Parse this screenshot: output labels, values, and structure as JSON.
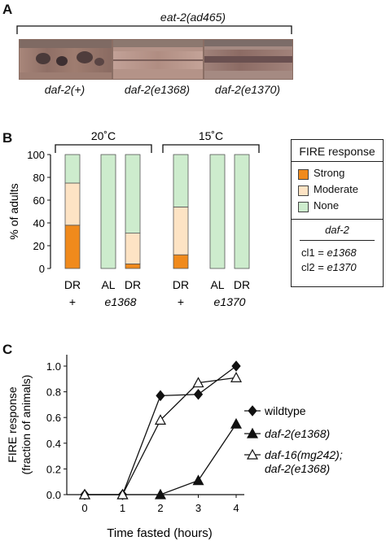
{
  "panelA": {
    "letter": "A",
    "bracket_label": "eat-2(ad465)",
    "images": [
      {
        "label": "daf-2(+)"
      },
      {
        "label": "daf-2(e1368)"
      },
      {
        "label": "daf-2(e1370)"
      }
    ]
  },
  "panelB": {
    "letter": "B",
    "temps": [
      "20˚C",
      "15˚C"
    ],
    "ylabel": "% of adults",
    "yticks": [
      "0",
      "20",
      "40",
      "60",
      "80",
      "100"
    ],
    "group_labels": [
      "DR",
      "AL",
      "DR",
      "DR",
      "AL",
      "DR"
    ],
    "genotype_labels": [
      "+",
      "e1368",
      "+",
      "e1370"
    ],
    "legend": {
      "title": "FIRE response",
      "items": [
        "Strong",
        "Moderate",
        "None"
      ],
      "sub_title": "daf-2",
      "cl1_prefix": "cl1 = ",
      "cl1_value": "e1368",
      "cl2_prefix": "cl2 = ",
      "cl2_value": "e1370"
    },
    "colors": {
      "strong": "#f08a1c",
      "moderate": "#fde3c4",
      "none": "#cdeccd"
    }
  },
  "panelC": {
    "letter": "C",
    "ylabel_line1": "FIRE response",
    "ylabel_line2": "(fraction of animals)",
    "xlabel": "Time fasted (hours)",
    "xticks": [
      "0",
      "1",
      "2",
      "3",
      "4"
    ],
    "yticks": [
      "0.0",
      "0.2",
      "0.4",
      "0.6",
      "0.8",
      "1.0"
    ],
    "legend": [
      "wildtype",
      "daf-2(e1368)",
      "daf-16(mg242);",
      "daf-2(e1368)"
    ]
  },
  "chart_data": [
    {
      "type": "bar",
      "stacked": true,
      "ylabel": "% of adults",
      "ylim": [
        0,
        100
      ],
      "categories": [
        "DR +",
        "AL e1368",
        "DR e1368",
        "DR +",
        "AL e1370",
        "DR e1370"
      ],
      "groups": [
        "20˚C",
        "20˚C",
        "20˚C",
        "15˚C",
        "15˚C",
        "15˚C"
      ],
      "series": [
        {
          "name": "Strong",
          "values": [
            38,
            0,
            4,
            12,
            0,
            0
          ]
        },
        {
          "name": "Moderate",
          "values": [
            37,
            0,
            27,
            42,
            0,
            0
          ]
        },
        {
          "name": "None",
          "values": [
            25,
            100,
            69,
            46,
            100,
            100
          ]
        }
      ]
    },
    {
      "type": "line",
      "xlabel": "Time fasted (hours)",
      "ylabel": "FIRE response (fraction of animals)",
      "xlim": [
        0,
        4
      ],
      "ylim": [
        0,
        1.0
      ],
      "x": [
        0,
        1,
        2,
        3,
        4
      ],
      "series": [
        {
          "name": "wildtype",
          "marker": "diamond",
          "values": [
            0.0,
            0.0,
            0.77,
            0.78,
            1.0
          ]
        },
        {
          "name": "daf-2(e1368)",
          "marker": "filled-triangle",
          "values": [
            0.0,
            0.0,
            0.0,
            0.11,
            0.55
          ]
        },
        {
          "name": "daf-16(mg242); daf-2(e1368)",
          "marker": "open-triangle",
          "values": [
            0.0,
            0.0,
            0.58,
            0.87,
            0.91
          ]
        }
      ]
    }
  ]
}
